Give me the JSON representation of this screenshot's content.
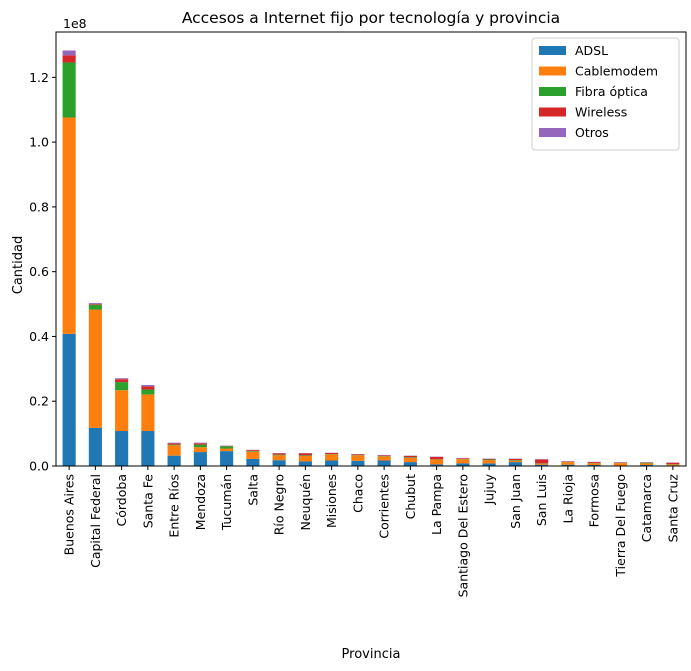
{
  "chart_data": {
    "type": "bar",
    "stacked": true,
    "title": "Accesos a Internet fijo por tecnología y provincia",
    "xlabel": "Provincia",
    "ylabel": "Cantidad",
    "y_multiplier": "1e8",
    "ylim": [
      0,
      134000000
    ],
    "yticks": [
      0,
      20000000,
      40000000,
      60000000,
      80000000,
      100000000,
      120000000
    ],
    "ytick_labels": [
      "0.0",
      "0.2",
      "0.4",
      "0.6",
      "0.8",
      "1.0",
      "1.2"
    ],
    "grid": false,
    "legend_position": "top-right",
    "categories": [
      "Buenos Aires",
      "Capital Federal",
      "Córdoba",
      "Santa Fe",
      "Entre Ríos",
      "Mendoza",
      "Tucumán",
      "Salta",
      "Río Negro",
      "Neuquén",
      "Misiones",
      "Chaco",
      "Corrientes",
      "Chubut",
      "La Pampa",
      "Santiago Del Estero",
      "Jujuy",
      "San Juan",
      "San Luis",
      "La Rioja",
      "Formosa",
      "Tierra Del Fuego",
      "Catamarca",
      "Santa Cruz"
    ],
    "series": [
      {
        "name": "ADSL",
        "color": "#1f77b4",
        "values": [
          40800000,
          11800000,
          10800000,
          10800000,
          3200000,
          4300000,
          4600000,
          2200000,
          1800000,
          1400000,
          1700000,
          1600000,
          1700000,
          1200000,
          500000,
          800000,
          800000,
          1200000,
          400000,
          400000,
          300000,
          100000,
          300000,
          200000
        ]
      },
      {
        "name": "Cablemodem",
        "color": "#ff7f0e",
        "values": [
          66800000,
          36500000,
          12600000,
          11300000,
          3200000,
          1500000,
          800000,
          2200000,
          1500000,
          1700000,
          1900000,
          1700000,
          1300000,
          1300000,
          1500000,
          1300000,
          1000000,
          400000,
          300000,
          800000,
          500000,
          800000,
          500000,
          300000
        ]
      },
      {
        "name": "Fibra óptica",
        "color": "#2ca02c",
        "values": [
          17000000,
          1500000,
          2500000,
          1500000,
          200000,
          800000,
          700000,
          200000,
          200000,
          200000,
          100000,
          100000,
          100000,
          200000,
          100000,
          100000,
          200000,
          200000,
          100000,
          100000,
          100000,
          100000,
          200000,
          100000
        ]
      },
      {
        "name": "Wireless",
        "color": "#d62728",
        "values": [
          2200000,
          200000,
          900000,
          1000000,
          400000,
          400000,
          100000,
          300000,
          400000,
          600000,
          300000,
          200000,
          200000,
          400000,
          700000,
          200000,
          200000,
          400000,
          1200000,
          100000,
          300000,
          100000,
          100000,
          400000
        ]
      },
      {
        "name": "Otros",
        "color": "#9467bd",
        "values": [
          1500000,
          300000,
          300000,
          400000,
          200000,
          200000,
          100000,
          100000,
          100000,
          100000,
          100000,
          100000,
          100000,
          100000,
          100000,
          100000,
          100000,
          100000,
          100000,
          100000,
          100000,
          100000,
          100000,
          100000
        ]
      }
    ]
  }
}
